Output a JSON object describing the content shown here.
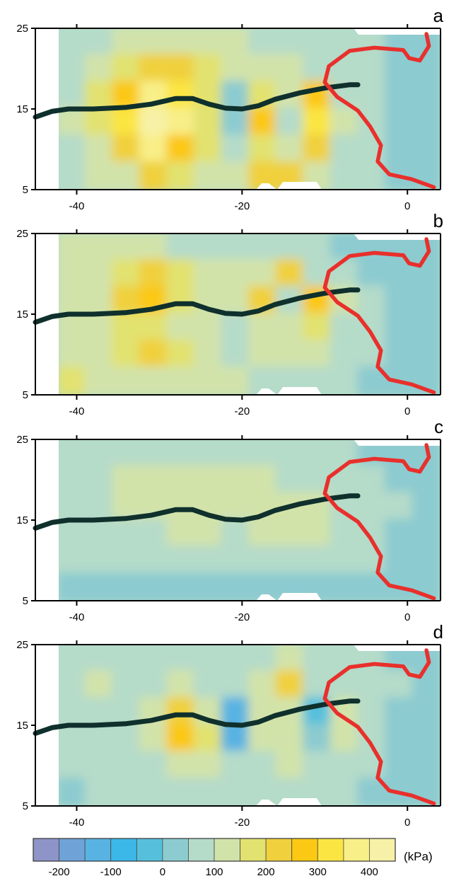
{
  "chart_data": [
    {
      "type": "heatmap",
      "panel": "a",
      "x_ticks": [
        -40,
        -20,
        0
      ],
      "y_ticks": [
        5,
        15,
        25
      ],
      "xlim": [
        -45,
        4
      ],
      "ylim": [
        5,
        25
      ],
      "grid": false,
      "cells": [
        [
          70,
          90,
          110,
          120,
          120,
          110,
          100,
          80,
          70,
          60,
          50,
          50,
          40,
          30
        ],
        [
          80,
          120,
          180,
          240,
          230,
          160,
          120,
          110,
          100,
          90,
          70,
          50,
          40,
          30
        ],
        [
          90,
          150,
          260,
          380,
          300,
          150,
          40,
          180,
          130,
          280,
          90,
          60,
          40,
          30
        ],
        [
          100,
          160,
          300,
          430,
          350,
          170,
          30,
          250,
          60,
          300,
          120,
          70,
          40,
          30
        ],
        [
          90,
          140,
          230,
          350,
          280,
          150,
          70,
          170,
          120,
          200,
          90,
          60,
          40,
          30
        ],
        [
          80,
          110,
          140,
          200,
          180,
          130,
          110,
          220,
          200,
          130,
          80,
          60,
          40,
          30
        ]
      ]
    },
    {
      "type": "heatmap",
      "panel": "b",
      "x_ticks": [
        -40,
        -20,
        0
      ],
      "y_ticks": [
        5,
        15,
        25
      ],
      "xlim": [
        -45,
        4
      ],
      "ylim": [
        5,
        25
      ],
      "grid": false,
      "cells": [
        [
          120,
          120,
          140,
          100,
          90,
          90,
          80,
          70,
          60,
          50,
          40,
          30,
          20,
          10
        ],
        [
          120,
          140,
          180,
          220,
          150,
          110,
          100,
          130,
          240,
          90,
          60,
          40,
          20,
          10
        ],
        [
          110,
          130,
          200,
          260,
          170,
          120,
          100,
          200,
          60,
          250,
          110,
          60,
          30,
          10
        ],
        [
          100,
          100,
          150,
          180,
          140,
          110,
          90,
          130,
          110,
          160,
          80,
          50,
          20,
          10
        ],
        [
          110,
          120,
          170,
          200,
          150,
          100,
          90,
          100,
          120,
          110,
          90,
          60,
          30,
          10
        ],
        [
          150,
          130,
          120,
          140,
          120,
          110,
          100,
          90,
          80,
          70,
          60,
          40,
          20,
          10
        ]
      ]
    },
    {
      "type": "heatmap",
      "panel": "c",
      "x_ticks": [
        -40,
        -20,
        0
      ],
      "y_ticks": [
        5,
        15,
        25
      ],
      "xlim": [
        -45,
        4
      ],
      "ylim": [
        5,
        25
      ],
      "grid": false,
      "cells": [
        [
          60,
          70,
          80,
          80,
          90,
          90,
          90,
          80,
          70,
          60,
          50,
          40,
          40,
          40
        ],
        [
          80,
          90,
          110,
          120,
          130,
          120,
          110,
          100,
          90,
          80,
          70,
          50,
          40,
          40
        ],
        [
          70,
          90,
          100,
          110,
          120,
          110,
          100,
          110,
          120,
          110,
          80,
          60,
          50,
          40
        ],
        [
          60,
          70,
          80,
          90,
          100,
          100,
          90,
          100,
          110,
          120,
          90,
          60,
          40,
          40
        ],
        [
          50,
          60,
          60,
          70,
          70,
          70,
          60,
          60,
          70,
          80,
          70,
          50,
          40,
          30
        ],
        [
          30,
          30,
          40,
          40,
          40,
          40,
          40,
          30,
          30,
          40,
          40,
          30,
          30,
          30
        ]
      ]
    },
    {
      "type": "heatmap",
      "panel": "d",
      "x_ticks": [
        -40,
        -20,
        0
      ],
      "y_ticks": [
        5,
        15,
        25
      ],
      "xlim": [
        -45,
        4
      ],
      "ylim": [
        5,
        25
      ],
      "grid": false,
      "cells": [
        [
          60,
          70,
          60,
          70,
          90,
          80,
          70,
          90,
          100,
          60,
          60,
          50,
          40,
          40
        ],
        [
          70,
          110,
          60,
          80,
          120,
          60,
          60,
          110,
          200,
          70,
          90,
          60,
          50,
          40
        ],
        [
          60,
          80,
          70,
          100,
          230,
          140,
          -150,
          130,
          130,
          -50,
          110,
          70,
          40,
          40
        ],
        [
          60,
          70,
          60,
          120,
          250,
          150,
          -130,
          120,
          100,
          30,
          100,
          70,
          40,
          40
        ],
        [
          50,
          60,
          60,
          80,
          130,
          100,
          60,
          90,
          110,
          80,
          80,
          60,
          40,
          40
        ],
        [
          40,
          50,
          50,
          60,
          70,
          60,
          50,
          60,
          60,
          50,
          50,
          40,
          40,
          40
        ]
      ]
    }
  ],
  "colorbar": {
    "tick_labels": [
      "-200",
      "-100",
      "0",
      "100",
      "200",
      "300",
      "400"
    ],
    "unit": "(kPa)",
    "colors": [
      "#8e94c8",
      "#6fa3d8",
      "#58b3e2",
      "#3cb8e8",
      "#56c0dc",
      "#8ccbd0",
      "#b5dbc9",
      "#d2e3aa",
      "#e2e270",
      "#f0d03c",
      "#fbc813",
      "#fbe542",
      "#f8ef88",
      "#f7f1a7"
    ]
  },
  "colors": {
    "track": "#0f302c",
    "coast": "#e8302c"
  }
}
